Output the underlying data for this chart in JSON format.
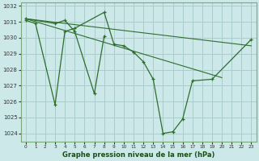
{
  "xlabel": "Graphe pression niveau de la mer (hPa)",
  "bg_color": "#cce8e8",
  "grid_color": "#aacccc",
  "line_color": "#2d6e2d",
  "ylim": [
    1023.5,
    1032.2
  ],
  "xlim": [
    -0.5,
    23.5
  ],
  "yticks": [
    1024,
    1025,
    1026,
    1027,
    1028,
    1029,
    1030,
    1031,
    1032
  ],
  "xticks": [
    0,
    1,
    2,
    3,
    4,
    5,
    6,
    7,
    8,
    9,
    10,
    11,
    12,
    13,
    14,
    15,
    16,
    17,
    18,
    19,
    20,
    21,
    22,
    23
  ],
  "series1_x": [
    0,
    1,
    3,
    4,
    5,
    8,
    9,
    10,
    11,
    12,
    13,
    14,
    15,
    16,
    17,
    19,
    23
  ],
  "series1_y": [
    1031.1,
    1030.9,
    1025.8,
    1030.4,
    1030.6,
    1031.6,
    1029.6,
    1029.5,
    1029.1,
    1028.5,
    1027.4,
    1024.0,
    1024.1,
    1024.9,
    1027.3,
    1027.4,
    1029.9
  ],
  "series2_x": [
    0,
    3,
    4,
    5,
    7,
    8
  ],
  "series2_y": [
    1031.2,
    1030.9,
    1031.1,
    1030.4,
    1026.5,
    1030.1
  ],
  "trend1_x": [
    0,
    23
  ],
  "trend1_y": [
    1031.2,
    1029.5
  ],
  "trend2_x": [
    0,
    20
  ],
  "trend2_y": [
    1031.2,
    1027.5
  ],
  "xlabel_color": "#1a4d1a",
  "xlabel_fontsize": 6,
  "tick_fontsize": 5.5,
  "border_color": "#7aaa7a"
}
